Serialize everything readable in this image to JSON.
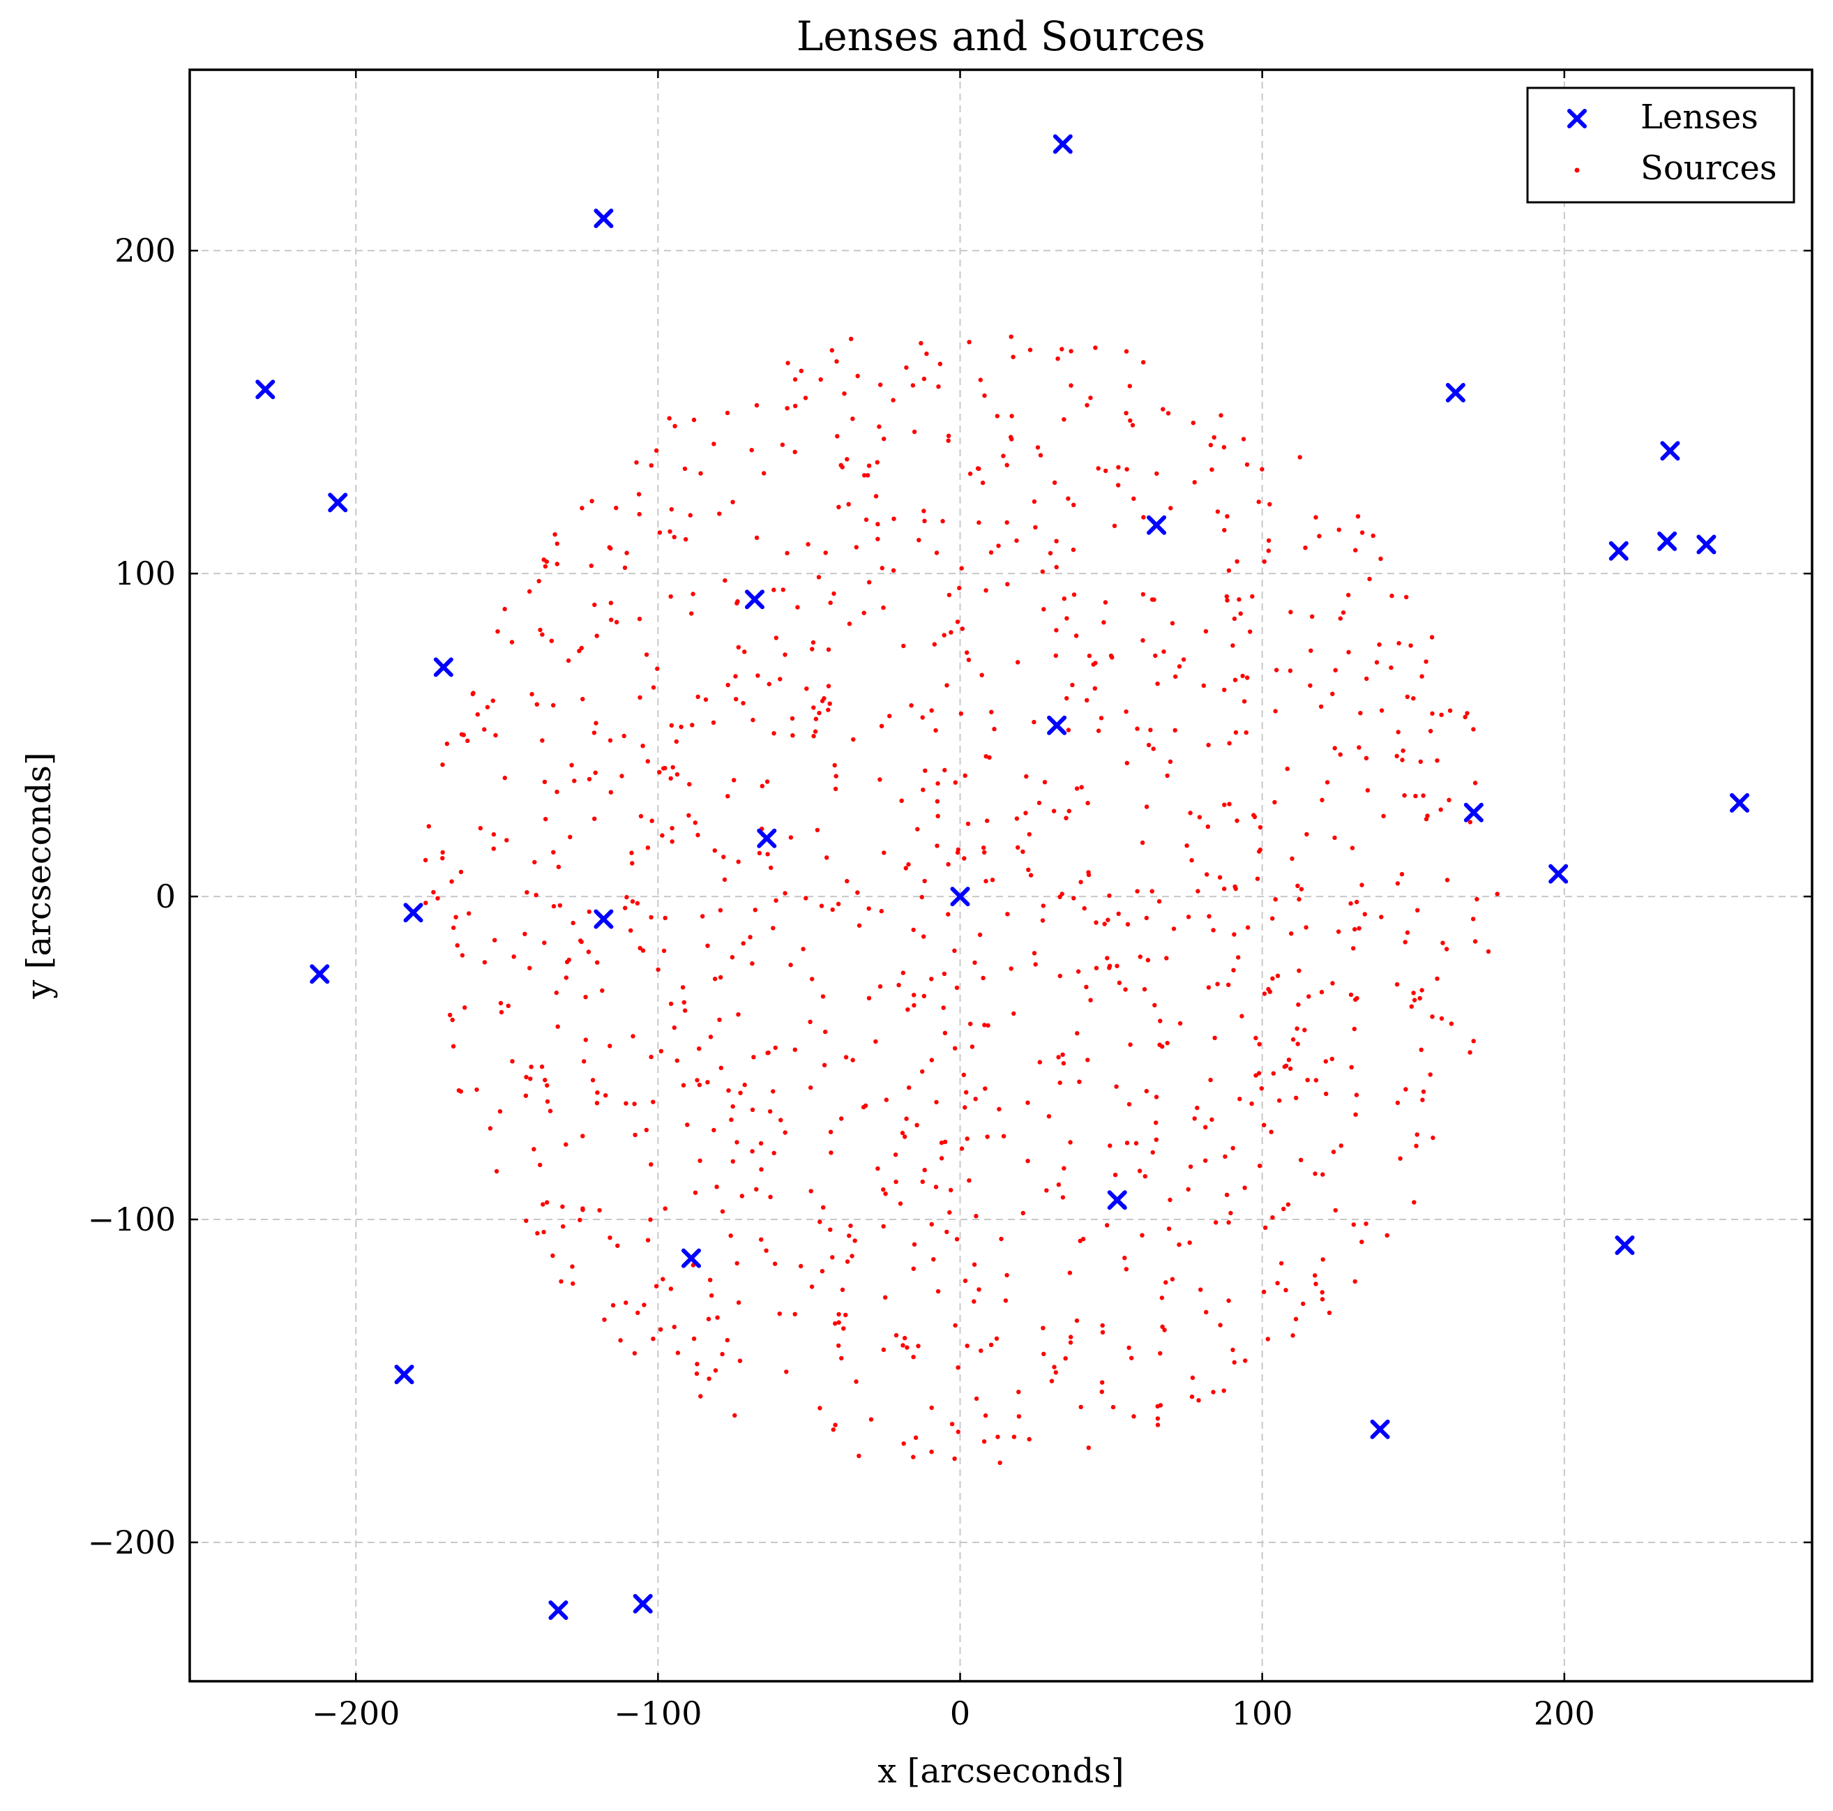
{
  "chart_data": {
    "type": "scatter",
    "title": "Lenses and Sources",
    "xlabel": "x [arcseconds]",
    "ylabel": "y [arcseconds]",
    "xlim": [
      -255,
      282
    ],
    "ylim": [
      -243,
      256
    ],
    "xticks": [
      -200,
      -100,
      0,
      100,
      200
    ],
    "yticks": [
      -200,
      -100,
      0,
      100,
      200
    ],
    "xtick_labels": [
      "−200",
      "−100",
      "0",
      "100",
      "200"
    ],
    "ytick_labels": [
      "−200",
      "−100",
      "0",
      "100",
      "200"
    ],
    "grid": true,
    "legend_position": "top-right",
    "series": [
      {
        "name": "Lenses",
        "marker": "x",
        "color": "#0000ff",
        "points": [
          [
            34,
            233
          ],
          [
            -118,
            210
          ],
          [
            -230,
            157
          ],
          [
            164,
            156
          ],
          [
            -206,
            122
          ],
          [
            235,
            138
          ],
          [
            65,
            115
          ],
          [
            218,
            107
          ],
          [
            234,
            110
          ],
          [
            247,
            109
          ],
          [
            -68,
            92
          ],
          [
            -171,
            71
          ],
          [
            32,
            53
          ],
          [
            170,
            26
          ],
          [
            258,
            29
          ],
          [
            -64,
            18
          ],
          [
            198,
            7
          ],
          [
            0,
            0
          ],
          [
            -181,
            -5
          ],
          [
            -118,
            -7
          ],
          [
            -212,
            -24
          ],
          [
            52,
            -94
          ],
          [
            220,
            -108
          ],
          [
            -89,
            -112
          ],
          [
            -184,
            -148
          ],
          [
            139,
            -165
          ],
          [
            -133,
            -221
          ],
          [
            -105,
            -219
          ]
        ]
      },
      {
        "name": "Sources",
        "marker": "dot",
        "color": "#ff0000",
        "disk_radius": 178,
        "count": 1200
      }
    ]
  }
}
